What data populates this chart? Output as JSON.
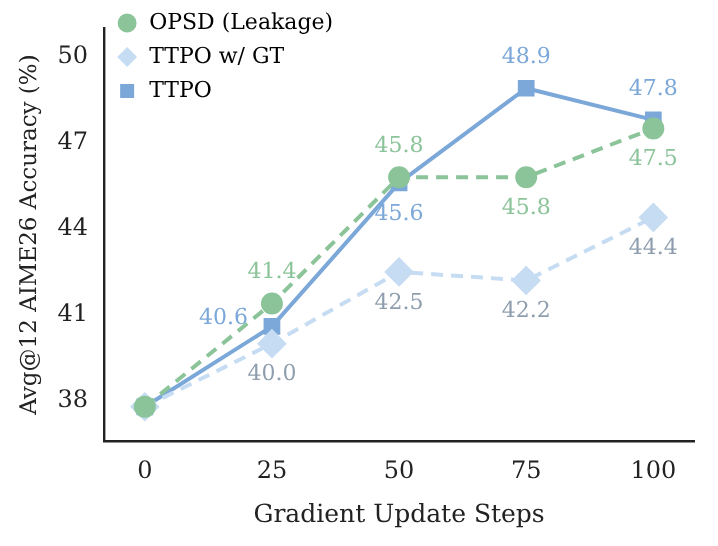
{
  "chart_data": {
    "type": "line",
    "xlabel": "Gradient Update Steps",
    "ylabel": "Avg@12 AIME26 Accuracy (%)",
    "x": [
      0,
      25,
      50,
      75,
      100
    ],
    "series": [
      {
        "name": "OPSD (Leakage)",
        "color": "#8cc49a",
        "values": [
          37.8,
          41.4,
          45.8,
          45.8,
          47.5
        ],
        "marker": "circle",
        "line_style": "dashed",
        "value_labels": [
          null,
          "41.4",
          "45.8",
          "45.8",
          "47.5"
        ]
      },
      {
        "name": "TTPO w/ GT",
        "color": "#c6dcf2",
        "values": [
          37.8,
          40.0,
          42.5,
          42.2,
          44.4
        ],
        "marker": "diamond",
        "line_style": "dashed",
        "value_labels": [
          null,
          "40.0",
          "42.5",
          "42.2",
          "44.4"
        ]
      },
      {
        "name": "TTPO",
        "color": "#7ba7d9",
        "values": [
          37.8,
          40.6,
          45.6,
          48.9,
          47.8
        ],
        "marker": "square",
        "line_style": "solid",
        "value_labels": [
          null,
          "40.6",
          "45.6",
          "48.9",
          "47.8"
        ]
      }
    ],
    "xlim": [
      -8,
      108
    ],
    "xticks": [
      0,
      25,
      50,
      75,
      100
    ],
    "ylim": [
      36.6,
      51
    ],
    "yticks": [
      38,
      41,
      44,
      47,
      50
    ],
    "grid": false,
    "legend": "top left"
  }
}
